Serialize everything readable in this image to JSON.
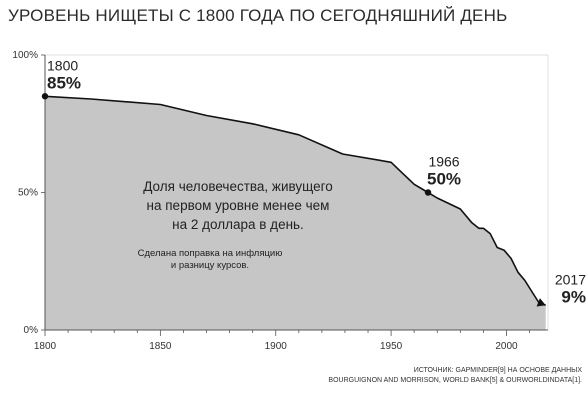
{
  "title": "УРОВЕНЬ НИЩЕТЫ С 1800 ГОДА ПО СЕГОДНЯШНИЙ ДЕНЬ",
  "source": {
    "line1": "ИСТОЧНИК: GAPMINDER[9] НА ОСНОВЕ ДАННЫХ",
    "line2": "BOURGUIGNON AND MORRISON, WORLD BANK[5] & OURWORLDINDATA[1]."
  },
  "center_text": {
    "lines": [
      "Доля человечества, живущего",
      "на первом уровне менее чем",
      "на 2 доллара в день."
    ],
    "note_lines": [
      "Сделана поправка на инфляцию",
      "и разницу курсов."
    ]
  },
  "colors": {
    "area": "#c6c6c6",
    "line": "#111111",
    "axis": "#555555"
  },
  "chart_data": {
    "type": "area",
    "title": "УРОВЕНЬ НИЩЕТЫ С 1800 ГОДА ПО СЕГОДНЯШНИЙ ДЕНЬ",
    "xlabel": "",
    "ylabel": "",
    "xlim": [
      1800,
      2018
    ],
    "ylim": [
      0,
      100
    ],
    "x_ticks": [
      1800,
      1850,
      1900,
      1950,
      2000
    ],
    "y_ticks": [
      {
        "value": 0,
        "label": "0%"
      },
      {
        "value": 50,
        "label": "50%"
      },
      {
        "value": 100,
        "label": "100%"
      }
    ],
    "grid": false,
    "x": [
      1800,
      1820,
      1850,
      1870,
      1890,
      1910,
      1929,
      1950,
      1955,
      1960,
      1966,
      1970,
      1975,
      1980,
      1985,
      1988,
      1990,
      1993,
      1996,
      1999,
      2002,
      2005,
      2008,
      2011,
      2014,
      2017
    ],
    "y": [
      85,
      84,
      82,
      78,
      75,
      71,
      64,
      61,
      57,
      53,
      50,
      48,
      46,
      44,
      39,
      37,
      37,
      35,
      30,
      29,
      26,
      21,
      18,
      14,
      10,
      9
    ],
    "annotations": [
      {
        "x": 1800,
        "y": 85,
        "year": "1800",
        "value": "85%"
      },
      {
        "x": 1966,
        "y": 50,
        "year": "1966",
        "value": "50%"
      },
      {
        "x": 2017,
        "y": 9,
        "year": "2017",
        "value": "9%"
      }
    ]
  }
}
